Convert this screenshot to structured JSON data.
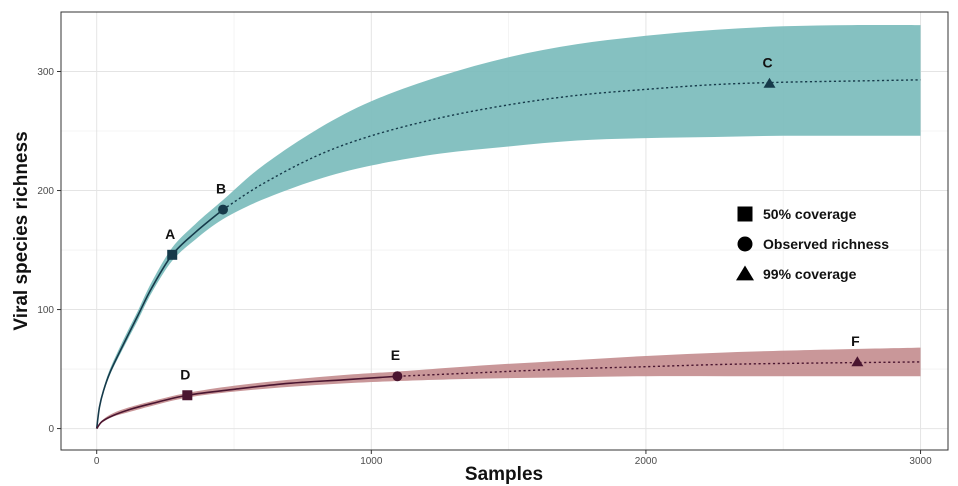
{
  "chart_data": {
    "type": "line",
    "xlabel": "Samples",
    "ylabel": "Viral species richness",
    "xlim": [
      -130,
      3100
    ],
    "ylim": [
      -18,
      350
    ],
    "x_ticks": [
      0,
      1000,
      2000,
      3000
    ],
    "y_ticks": [
      0,
      100,
      200,
      300
    ],
    "grid": true,
    "legend_position": "right",
    "legend": [
      {
        "label": "50% coverage",
        "marker": "square"
      },
      {
        "label": "Observed richness",
        "marker": "circle"
      },
      {
        "label": "99% coverage",
        "marker": "triangle"
      }
    ],
    "series": [
      {
        "color": "#163a4a",
        "band_color": "#7bbcbc",
        "observed_until": 460,
        "points": [
          {
            "x": 0,
            "y": 0,
            "lo": 0,
            "hi": 0
          },
          {
            "x": 10,
            "y": 18,
            "lo": 17,
            "hi": 19
          },
          {
            "x": 25,
            "y": 32,
            "lo": 30,
            "hi": 34
          },
          {
            "x": 50,
            "y": 48,
            "lo": 46,
            "hi": 51
          },
          {
            "x": 100,
            "y": 72,
            "lo": 69,
            "hi": 76
          },
          {
            "x": 150,
            "y": 95,
            "lo": 91,
            "hi": 99
          },
          {
            "x": 200,
            "y": 118,
            "lo": 114,
            "hi": 123
          },
          {
            "x": 275,
            "y": 146,
            "lo": 141,
            "hi": 152
          },
          {
            "x": 360,
            "y": 165,
            "lo": 159,
            "hi": 172
          },
          {
            "x": 460,
            "y": 184,
            "lo": 176,
            "hi": 192
          },
          {
            "x": 600,
            "y": 205,
            "lo": 192,
            "hi": 220
          },
          {
            "x": 800,
            "y": 229,
            "lo": 209,
            "hi": 251
          },
          {
            "x": 1000,
            "y": 246,
            "lo": 221,
            "hi": 275
          },
          {
            "x": 1250,
            "y": 261,
            "lo": 231,
            "hi": 296
          },
          {
            "x": 1500,
            "y": 272,
            "lo": 237,
            "hi": 312
          },
          {
            "x": 1750,
            "y": 280,
            "lo": 242,
            "hi": 323
          },
          {
            "x": 2000,
            "y": 285,
            "lo": 244,
            "hi": 330
          },
          {
            "x": 2250,
            "y": 289,
            "lo": 245,
            "hi": 335
          },
          {
            "x": 2500,
            "y": 291,
            "lo": 246,
            "hi": 338
          },
          {
            "x": 2750,
            "y": 292,
            "lo": 246,
            "hi": 339
          },
          {
            "x": 3000,
            "y": 293,
            "lo": 246,
            "hi": 339
          }
        ],
        "markers": [
          {
            "label": "A",
            "x": 275,
            "y": 146,
            "shape": "square"
          },
          {
            "label": "B",
            "x": 460,
            "y": 184,
            "shape": "circle"
          },
          {
            "label": "C",
            "x": 2450,
            "y": 290,
            "shape": "triangle"
          }
        ]
      },
      {
        "color": "#4a1530",
        "band_color": "#c48e90",
        "observed_until": 1100,
        "points": [
          {
            "x": 0,
            "y": 0,
            "lo": 0,
            "hi": 0
          },
          {
            "x": 20,
            "y": 6,
            "lo": 5,
            "hi": 7
          },
          {
            "x": 60,
            "y": 11,
            "lo": 10,
            "hi": 13
          },
          {
            "x": 120,
            "y": 16,
            "lo": 14,
            "hi": 18
          },
          {
            "x": 200,
            "y": 21,
            "lo": 19,
            "hi": 23
          },
          {
            "x": 330,
            "y": 28,
            "lo": 26,
            "hi": 30
          },
          {
            "x": 500,
            "y": 33,
            "lo": 31,
            "hi": 36
          },
          {
            "x": 700,
            "y": 38,
            "lo": 35,
            "hi": 41
          },
          {
            "x": 900,
            "y": 41,
            "lo": 38,
            "hi": 45
          },
          {
            "x": 1100,
            "y": 44,
            "lo": 40,
            "hi": 48
          },
          {
            "x": 1400,
            "y": 47,
            "lo": 42,
            "hi": 53
          },
          {
            "x": 1700,
            "y": 50,
            "lo": 43,
            "hi": 57
          },
          {
            "x": 2000,
            "y": 52,
            "lo": 44,
            "hi": 61
          },
          {
            "x": 2300,
            "y": 54,
            "lo": 44,
            "hi": 64
          },
          {
            "x": 2600,
            "y": 55,
            "lo": 44,
            "hi": 66
          },
          {
            "x": 3000,
            "y": 56,
            "lo": 44,
            "hi": 68
          }
        ],
        "markers": [
          {
            "label": "D",
            "x": 330,
            "y": 28,
            "shape": "square"
          },
          {
            "label": "E",
            "x": 1095,
            "y": 44,
            "shape": "circle"
          },
          {
            "label": "F",
            "x": 2770,
            "y": 56,
            "shape": "triangle"
          }
        ]
      }
    ]
  }
}
